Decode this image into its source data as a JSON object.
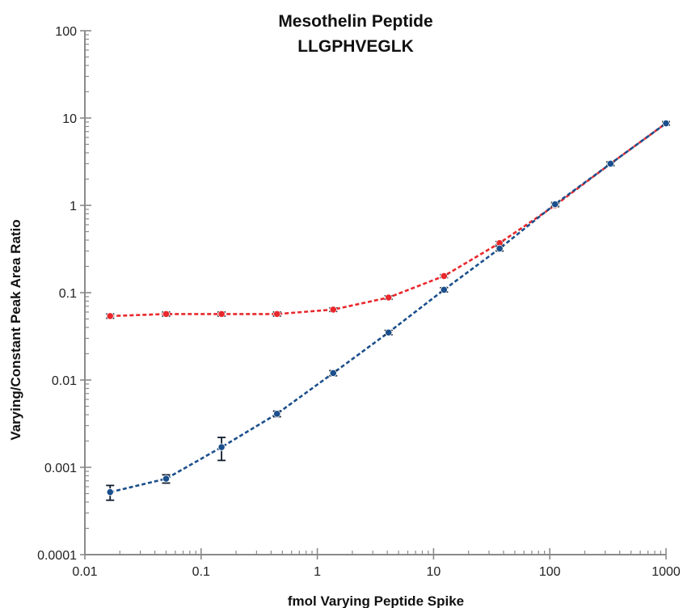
{
  "chart_data": {
    "type": "scatter",
    "title_lines": [
      "Mesothelin Peptide",
      "LLGPHVEGLK"
    ],
    "xlabel": "fmol Varying Peptide Spike",
    "ylabel": "Varying/Constant Peak Area Ratio",
    "xscale": "log",
    "yscale": "log",
    "xlim": [
      0.01,
      1000
    ],
    "ylim": [
      0.0001,
      100
    ],
    "xticks": [
      {
        "value": 0.01,
        "label": "0.01"
      },
      {
        "value": 0.1,
        "label": "0.1"
      },
      {
        "value": 1,
        "label": "1"
      },
      {
        "value": 10,
        "label": "10"
      },
      {
        "value": 100,
        "label": "100"
      },
      {
        "value": 1000,
        "label": "1000"
      }
    ],
    "yticks": [
      {
        "value": 0.0001,
        "label": "0.0001"
      },
      {
        "value": 0.001,
        "label": "0.001"
      },
      {
        "value": 0.01,
        "label": "0.01"
      },
      {
        "value": 0.1,
        "label": "0.1"
      },
      {
        "value": 1,
        "label": "1"
      },
      {
        "value": 10,
        "label": "10"
      },
      {
        "value": 100,
        "label": "100"
      }
    ],
    "grid": false,
    "legend": "none",
    "line_style": "dashed",
    "series": [
      {
        "color": "#e8282c",
        "x": [
          0.0165,
          0.05,
          0.15,
          0.45,
          1.37,
          4.1,
          12.3,
          37,
          111,
          333,
          1000
        ],
        "y": [
          0.054,
          0.057,
          0.057,
          0.057,
          0.064,
          0.088,
          0.155,
          0.37,
          1.0,
          3.0,
          8.7
        ],
        "err": [
          0.003,
          0.003,
          0.003,
          0.003,
          0.003,
          0.004,
          0.006,
          0.015,
          0.04,
          0.12,
          0.35
        ]
      },
      {
        "color": "#1b4f8c",
        "x": [
          0.0165,
          0.05,
          0.15,
          0.45,
          1.37,
          4.1,
          12.3,
          37,
          111,
          333,
          1000
        ],
        "y": [
          0.00052,
          0.00074,
          0.0017,
          0.0041,
          0.012,
          0.035,
          0.108,
          0.32,
          1.03,
          3.0,
          8.7
        ],
        "err": [
          0.0001,
          8e-05,
          0.0005,
          0.0003,
          0.0008,
          0.002,
          0.006,
          0.02,
          0.05,
          0.15,
          0.4
        ]
      }
    ]
  }
}
